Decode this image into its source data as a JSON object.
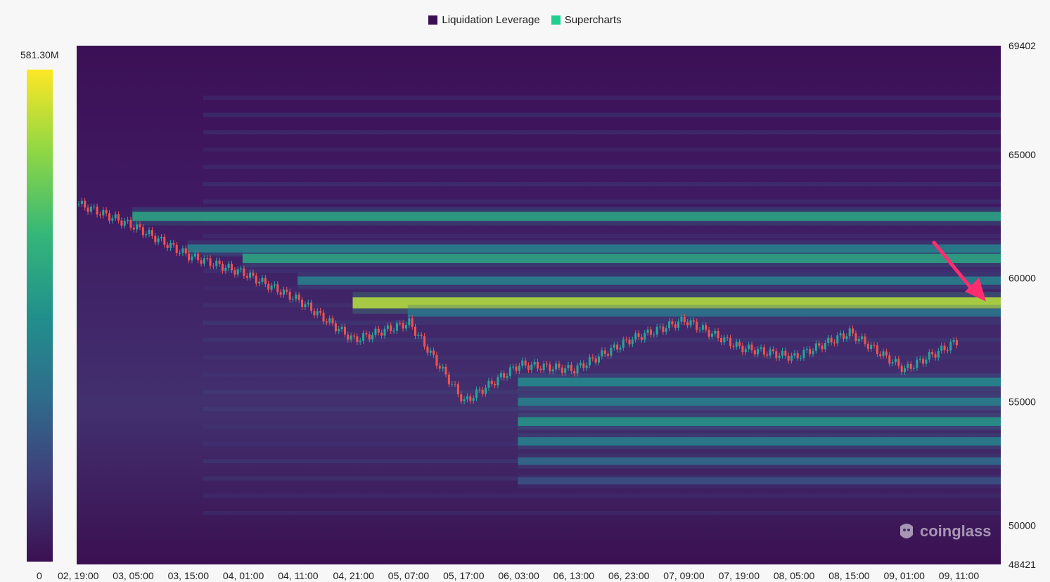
{
  "legend": [
    {
      "label": "Liquidation Leverage",
      "color": "#3b1052"
    },
    {
      "label": "Supercharts",
      "color": "#1fcf8f"
    }
  ],
  "colorbar": {
    "max_label": "581.30M",
    "min_label": "0"
  },
  "watermark": "coinglass",
  "annotation": {
    "type": "arrow",
    "color": "#ff2d6f",
    "points_to_price": 59000
  },
  "chart_data": {
    "type": "heatmap",
    "title": "",
    "xlabel": "",
    "ylabel": "",
    "ylim": [
      48421,
      69402
    ],
    "y_ticks": [
      "69402",
      "65000",
      "60000",
      "55000",
      "50000",
      "48421"
    ],
    "x_ticks": [
      "02, 19:00",
      "03, 05:00",
      "03, 15:00",
      "04, 01:00",
      "04, 11:00",
      "04, 21:00",
      "05, 07:00",
      "05, 17:00",
      "06, 03:00",
      "06, 13:00",
      "06, 23:00",
      "07, 09:00",
      "07, 19:00",
      "08, 05:00",
      "08, 15:00",
      "09, 01:00",
      "09, 11:00"
    ],
    "colorscale": {
      "min": 0,
      "max": "581.30M",
      "colors": [
        "#3b1052",
        "#3f3d7a",
        "#2f6c8c",
        "#21908c",
        "#35b779",
        "#8fd744",
        "#fde725"
      ]
    },
    "liquidation_bands": [
      {
        "price": 62500,
        "intensity": 0.62,
        "start": "03, 05:00"
      },
      {
        "price": 61200,
        "intensity": 0.45,
        "start": "03, 15:00"
      },
      {
        "price": 60800,
        "intensity": 0.62,
        "start": "04, 01:00"
      },
      {
        "price": 59900,
        "intensity": 0.45,
        "start": "04, 11:00"
      },
      {
        "price": 59000,
        "intensity": 0.95,
        "start": "04, 21:00"
      },
      {
        "price": 58600,
        "intensity": 0.4,
        "start": "05, 07:00"
      },
      {
        "price": 55800,
        "intensity": 0.5,
        "start": "06, 03:00"
      },
      {
        "price": 55000,
        "intensity": 0.45,
        "start": "06, 03:00"
      },
      {
        "price": 54200,
        "intensity": 0.55,
        "start": "06, 03:00"
      },
      {
        "price": 53400,
        "intensity": 0.45,
        "start": "06, 03:00"
      },
      {
        "price": 52600,
        "intensity": 0.35,
        "start": "06, 03:00"
      },
      {
        "price": 51800,
        "intensity": 0.25,
        "start": "06, 03:00"
      }
    ],
    "price_series": [
      {
        "x": "02, 19:00",
        "y": 63000
      },
      {
        "x": "03, 05:00",
        "y": 62100
      },
      {
        "x": "03, 15:00",
        "y": 60900
      },
      {
        "x": "04, 01:00",
        "y": 60200
      },
      {
        "x": "04, 11:00",
        "y": 59100
      },
      {
        "x": "04, 21:00",
        "y": 57500
      },
      {
        "x": "05, 07:00",
        "y": 58200
      },
      {
        "x": "05, 17:00",
        "y": 55000
      },
      {
        "x": "06, 03:00",
        "y": 56500
      },
      {
        "x": "06, 13:00",
        "y": 56300
      },
      {
        "x": "06, 23:00",
        "y": 57500
      },
      {
        "x": "07, 09:00",
        "y": 58300
      },
      {
        "x": "07, 19:00",
        "y": 57200
      },
      {
        "x": "08, 05:00",
        "y": 56800
      },
      {
        "x": "08, 15:00",
        "y": 57800
      },
      {
        "x": "09, 01:00",
        "y": 56300
      },
      {
        "x": "09, 11:00",
        "y": 57500
      }
    ]
  }
}
